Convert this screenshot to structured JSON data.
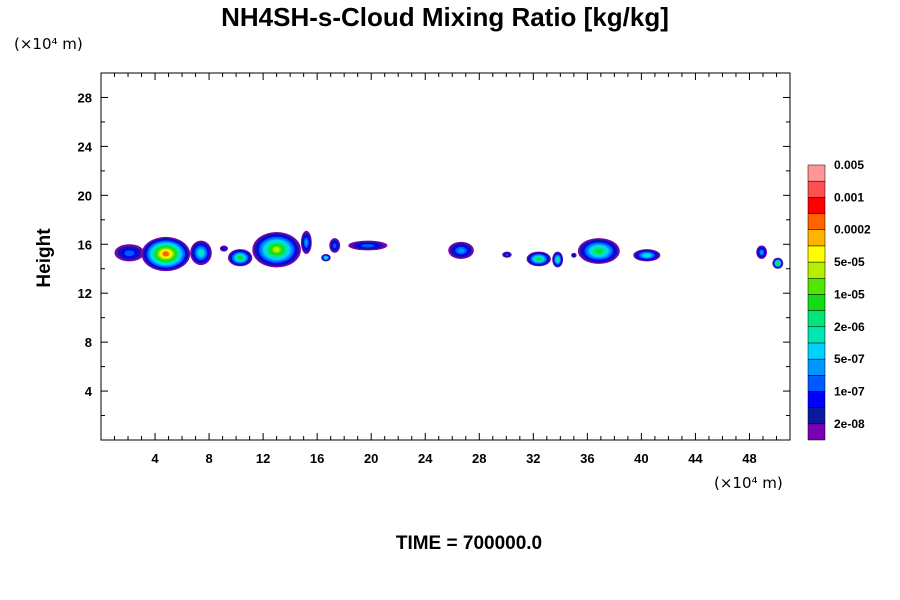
{
  "chart_data": {
    "type": "heatmap",
    "title": "NH4SH-s-Cloud Mixing Ratio [kg/kg]",
    "ylabel": "Height",
    "x_unit": "(×10⁴ m)",
    "y_unit": "(×10⁴ m)",
    "xlim": [
      0,
      51
    ],
    "ylim": [
      0,
      30
    ],
    "x_ticks": [
      4,
      8,
      12,
      16,
      20,
      24,
      28,
      32,
      36,
      40,
      44,
      48
    ],
    "y_ticks": [
      4,
      8,
      12,
      16,
      20,
      24,
      28
    ],
    "time_label": "TIME = 700000.0",
    "colorbar": {
      "colors": [
        "#7a00b4",
        "#0a1aa0",
        "#0000ff",
        "#005aff",
        "#0096ff",
        "#00d2ff",
        "#00e6b4",
        "#00e67a",
        "#14dc14",
        "#50e600",
        "#b4f000",
        "#ffff00",
        "#ffb400",
        "#ff6400",
        "#ff0000",
        "#ff5050",
        "#ff9696"
      ],
      "labels": [
        "2e-08",
        "1e-07",
        "5e-07",
        "2e-06",
        "1e-05",
        "5e-05",
        "0.0002",
        "0.001",
        "0.005"
      ]
    },
    "clouds": [
      {
        "x": [
          1.0,
          3.2
        ],
        "base": 14.6,
        "top": 16.0,
        "peak": 3
      },
      {
        "x": [
          3.0,
          6.6
        ],
        "base": 13.8,
        "top": 16.6,
        "peak": 13
      },
      {
        "x": [
          6.6,
          8.2
        ],
        "base": 14.3,
        "top": 16.3,
        "peak": 6
      },
      {
        "x": [
          8.8,
          9.4
        ],
        "base": 15.4,
        "top": 15.9,
        "peak": 2
      },
      {
        "x": [
          9.4,
          11.2
        ],
        "base": 14.2,
        "top": 15.6,
        "peak": 8
      },
      {
        "x": [
          11.2,
          14.8
        ],
        "base": 14.1,
        "top": 17.0,
        "peak": 10
      },
      {
        "x": [
          14.8,
          15.6
        ],
        "base": 15.2,
        "top": 17.1,
        "peak": 4
      },
      {
        "x": [
          16.3,
          17.0
        ],
        "base": 14.6,
        "top": 15.2,
        "peak": 7
      },
      {
        "x": [
          16.9,
          17.7
        ],
        "base": 15.3,
        "top": 16.5,
        "peak": 3
      },
      {
        "x": [
          18.3,
          21.2
        ],
        "base": 15.5,
        "top": 16.3,
        "peak": 3
      },
      {
        "x": [
          25.7,
          27.6
        ],
        "base": 14.8,
        "top": 16.2,
        "peak": 4
      },
      {
        "x": [
          29.7,
          30.4
        ],
        "base": 14.9,
        "top": 15.4,
        "peak": 3
      },
      {
        "x": [
          31.5,
          33.3
        ],
        "base": 14.2,
        "top": 15.4,
        "peak": 8
      },
      {
        "x": [
          33.4,
          34.2
        ],
        "base": 14.1,
        "top": 15.4,
        "peak": 7
      },
      {
        "x": [
          34.8,
          35.2
        ],
        "base": 14.9,
        "top": 15.3,
        "peak": 2
      },
      {
        "x": [
          35.3,
          38.4
        ],
        "base": 14.4,
        "top": 16.5,
        "peak": 8
      },
      {
        "x": [
          39.4,
          41.4
        ],
        "base": 14.6,
        "top": 15.6,
        "peak": 6
      },
      {
        "x": [
          48.5,
          49.3
        ],
        "base": 14.8,
        "top": 15.9,
        "peak": 4
      },
      {
        "x": [
          49.7,
          50.5
        ],
        "base": 14.0,
        "top": 14.9,
        "peak": 9
      }
    ]
  }
}
